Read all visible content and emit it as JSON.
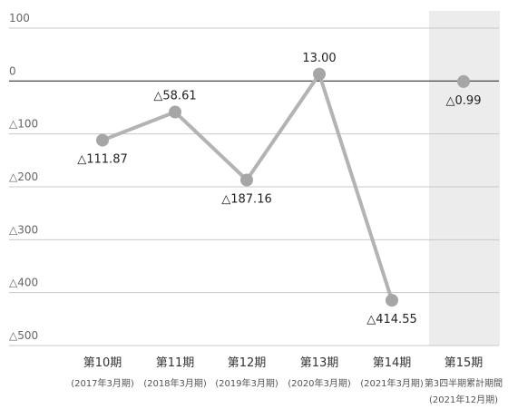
{
  "chart_data": {
    "type": "line",
    "title": "",
    "xlabel": "",
    "ylabel": "",
    "ylim": [
      -500,
      100
    ],
    "yticks": [
      {
        "value": 100,
        "label": "100"
      },
      {
        "value": 0,
        "label": "0"
      },
      {
        "value": -100,
        "label": "△100"
      },
      {
        "value": -200,
        "label": "△200"
      },
      {
        "value": -300,
        "label": "△300"
      },
      {
        "value": -400,
        "label": "△400"
      },
      {
        "value": -500,
        "label": "△500"
      }
    ],
    "categories": [
      {
        "label": "第10期",
        "sub": [
          "(2017年3月期)"
        ]
      },
      {
        "label": "第11期",
        "sub": [
          "(2018年3月期)"
        ]
      },
      {
        "label": "第12期",
        "sub": [
          "(2019年3月期)"
        ]
      },
      {
        "label": "第13期",
        "sub": [
          "(2020年3月期)"
        ]
      },
      {
        "label": "第14期",
        "sub": [
          "(2021年3月期)"
        ]
      },
      {
        "label": "第15期",
        "sub": [
          "第3四半期累計期間",
          "(2021年12月期)"
        ]
      }
    ],
    "series": [
      {
        "values": [
          -111.87,
          -58.61,
          -187.16,
          13.0,
          -414.55,
          -0.99
        ],
        "labels": [
          "△111.87",
          "△58.61",
          "△187.16",
          "13.00",
          "△414.55",
          "△0.99"
        ],
        "connected": [
          true,
          true,
          true,
          true,
          true,
          false
        ]
      }
    ],
    "highlight_category": 5,
    "grid": true,
    "colors": {
      "line": "#b3b3b3",
      "marker": "#a6a6a6",
      "grid": "#c8c8c8",
      "zero_line": "#333333",
      "highlight_bg": "#ececec"
    }
  }
}
